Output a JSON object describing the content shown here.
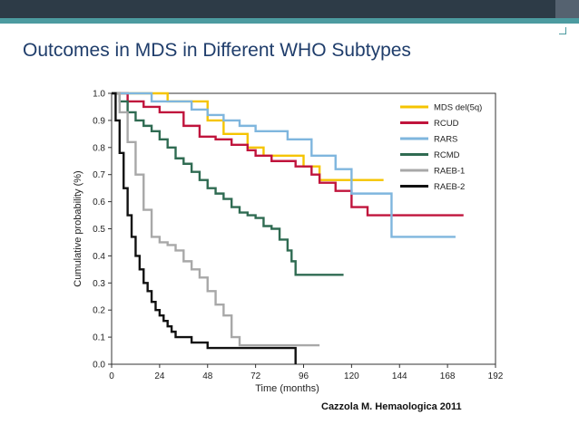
{
  "slide": {
    "title": "Outcomes in MDS in Different WHO Subtypes",
    "citation": "Cazzola M. Hemaologica 2011"
  },
  "chart_data": {
    "type": "line",
    "step": true,
    "xlabel": "Time (months)",
    "ylabel": "Cumulative probability (%)",
    "xlim": [
      0,
      192
    ],
    "ylim": [
      0,
      1.0
    ],
    "xticks": [
      "0",
      "24",
      "48",
      "72",
      "96",
      "120",
      "144",
      "168",
      "192"
    ],
    "yticks": [
      "0.0",
      "0.1",
      "0.2",
      "0.3",
      "0.4",
      "0.5",
      "0.6",
      "0.7",
      "0.8",
      "0.9",
      "1.0"
    ],
    "legend_position": "top-right",
    "series": [
      {
        "name": "MDS del(5q)",
        "color": "#f5c400",
        "x": [
          0,
          24,
          28,
          48,
          56,
          64,
          68,
          76,
          96,
          104,
          136
        ],
        "y": [
          1.0,
          1.0,
          0.97,
          0.9,
          0.85,
          0.85,
          0.8,
          0.77,
          0.73,
          0.68,
          0.68
        ]
      },
      {
        "name": "RCUD",
        "color": "#c0143c",
        "x": [
          0,
          8,
          16,
          24,
          32,
          36,
          44,
          52,
          60,
          68,
          72,
          80,
          92,
          100,
          104,
          112,
          120,
          128,
          140,
          144,
          160,
          176
        ],
        "y": [
          1.0,
          0.97,
          0.95,
          0.93,
          0.93,
          0.88,
          0.84,
          0.83,
          0.81,
          0.79,
          0.77,
          0.75,
          0.73,
          0.7,
          0.67,
          0.64,
          0.58,
          0.55,
          0.55,
          0.55,
          0.55,
          0.55
        ]
      },
      {
        "name": "RARS",
        "color": "#7fb6de",
        "x": [
          0,
          20,
          40,
          48,
          56,
          64,
          72,
          88,
          100,
          112,
          120,
          140,
          160,
          172
        ],
        "y": [
          1.0,
          0.97,
          0.94,
          0.92,
          0.9,
          0.88,
          0.86,
          0.83,
          0.77,
          0.72,
          0.63,
          0.47,
          0.47,
          0.47
        ]
      },
      {
        "name": "RCMD",
        "color": "#2f6b52",
        "x": [
          0,
          4,
          8,
          12,
          16,
          20,
          24,
          28,
          32,
          36,
          40,
          44,
          48,
          52,
          56,
          60,
          64,
          68,
          72,
          76,
          80,
          84,
          88,
          90,
          92,
          100,
          116
        ],
        "y": [
          1.0,
          0.97,
          0.93,
          0.9,
          0.88,
          0.86,
          0.83,
          0.8,
          0.76,
          0.74,
          0.71,
          0.68,
          0.65,
          0.63,
          0.61,
          0.58,
          0.56,
          0.55,
          0.54,
          0.51,
          0.5,
          0.46,
          0.42,
          0.38,
          0.33,
          0.33,
          0.33
        ]
      },
      {
        "name": "RAEB-1",
        "color": "#a8a8a8",
        "x": [
          0,
          4,
          8,
          12,
          16,
          20,
          24,
          28,
          32,
          36,
          40,
          44,
          48,
          52,
          56,
          60,
          64,
          68,
          80,
          92,
          104
        ],
        "y": [
          1.0,
          0.93,
          0.82,
          0.7,
          0.57,
          0.47,
          0.45,
          0.44,
          0.42,
          0.38,
          0.35,
          0.32,
          0.27,
          0.22,
          0.18,
          0.1,
          0.07,
          0.07,
          0.07,
          0.07,
          0.07
        ]
      },
      {
        "name": "RAEB-2",
        "color": "#111111",
        "x": [
          0,
          2,
          4,
          6,
          8,
          10,
          12,
          14,
          16,
          18,
          20,
          22,
          24,
          26,
          28,
          30,
          32,
          36,
          40,
          48,
          60,
          80,
          92
        ],
        "y": [
          1.0,
          0.9,
          0.78,
          0.65,
          0.55,
          0.47,
          0.4,
          0.35,
          0.3,
          0.27,
          0.23,
          0.2,
          0.18,
          0.16,
          0.14,
          0.12,
          0.1,
          0.1,
          0.08,
          0.06,
          0.06,
          0.06,
          0.0
        ]
      }
    ]
  }
}
